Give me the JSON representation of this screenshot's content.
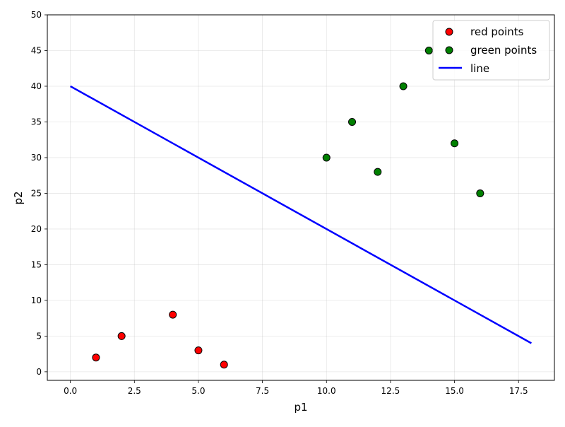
{
  "chart_data": {
    "type": "scatter",
    "title": "",
    "xlabel": "p1",
    "ylabel": "p2",
    "xlim": [
      -0.9,
      18.9
    ],
    "ylim": [
      -1.2,
      50
    ],
    "xticks": [
      0.0,
      2.5,
      5.0,
      7.5,
      10.0,
      12.5,
      15.0,
      17.5
    ],
    "xtick_labels": [
      "0.0",
      "2.5",
      "5.0",
      "7.5",
      "10.0",
      "12.5",
      "15.0",
      "17.5"
    ],
    "yticks": [
      0,
      5,
      10,
      15,
      20,
      25,
      30,
      35,
      40,
      45,
      50
    ],
    "ytick_labels": [
      "0",
      "5",
      "10",
      "15",
      "20",
      "25",
      "30",
      "35",
      "40",
      "45",
      "50"
    ],
    "grid": true,
    "legend_position": "top-right",
    "series": [
      {
        "name": "red points",
        "kind": "scatter",
        "color": "#ff0000",
        "edge_color": "#000000",
        "points": [
          {
            "x": 1,
            "y": 2
          },
          {
            "x": 2,
            "y": 5
          },
          {
            "x": 4,
            "y": 8
          },
          {
            "x": 5,
            "y": 3
          },
          {
            "x": 6,
            "y": 1
          }
        ]
      },
      {
        "name": "green points",
        "kind": "scatter",
        "color": "#008000",
        "edge_color": "#000000",
        "points": [
          {
            "x": 10,
            "y": 30
          },
          {
            "x": 11,
            "y": 35
          },
          {
            "x": 12,
            "y": 28
          },
          {
            "x": 13,
            "y": 40
          },
          {
            "x": 14,
            "y": 45
          },
          {
            "x": 15,
            "y": 32
          },
          {
            "x": 16,
            "y": 25
          }
        ]
      },
      {
        "name": "line",
        "kind": "line",
        "color": "#0000ff",
        "points": [
          {
            "x": 0,
            "y": 40
          },
          {
            "x": 18,
            "y": 4
          }
        ]
      }
    ]
  }
}
